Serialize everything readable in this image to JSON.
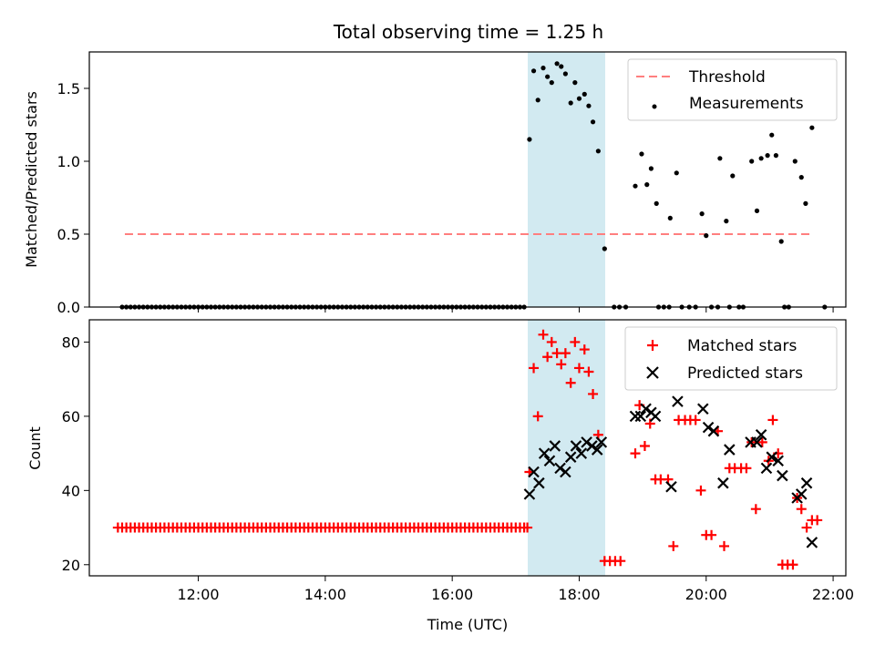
{
  "title": "Total observing time = 1.25 h",
  "colors": {
    "threshold": "#ff7f7f",
    "measurement": "#000000",
    "matched": "#ff0000",
    "predicted": "#000000",
    "window": "#add8e6"
  },
  "chart_data": [
    {
      "type": "scatter",
      "panel": "top",
      "ylabel": "Matched/Predicted stars",
      "xlabel": "",
      "xlim": [
        "10:17",
        "22:12"
      ],
      "ylim": [
        0,
        1.75
      ],
      "yticks": [
        "0.0",
        "0.5",
        "1.0",
        "1.5"
      ],
      "xticks": [
        "12:00",
        "14:00",
        "16:00",
        "18:00",
        "20:00",
        "22:00"
      ],
      "observing_window": [
        "17:13",
        "18:28"
      ],
      "legend_position": "top-right",
      "threshold": {
        "name": "Threshold",
        "y": 0.5,
        "x_range": [
          "10:44",
          "21:54"
        ]
      },
      "series": [
        {
          "name": "Measurements",
          "marker": "dot",
          "points": [
            [
              "17:13",
              1.15
            ],
            [
              "17:17",
              1.62
            ],
            [
              "17:21",
              1.42
            ],
            [
              "17:26",
              1.64
            ],
            [
              "17:30",
              1.58
            ],
            [
              "17:34",
              1.54
            ],
            [
              "17:39",
              1.67
            ],
            [
              "17:43",
              1.65
            ],
            [
              "17:47",
              1.6
            ],
            [
              "17:52",
              1.4
            ],
            [
              "17:56",
              1.54
            ],
            [
              "18:00",
              1.43
            ],
            [
              "18:05",
              1.46
            ],
            [
              "18:09",
              1.38
            ],
            [
              "18:13",
              1.27
            ],
            [
              "18:18",
              1.07
            ],
            [
              "18:24",
              0.4
            ],
            [
              "18:53",
              0.83
            ],
            [
              "18:59",
              1.05
            ],
            [
              "19:04",
              0.84
            ],
            [
              "19:08",
              0.95
            ],
            [
              "19:13",
              0.71
            ],
            [
              "19:26",
              0.61
            ],
            [
              "19:32",
              0.92
            ],
            [
              "19:56",
              0.64
            ],
            [
              "20:00",
              0.49
            ],
            [
              "20:13",
              1.02
            ],
            [
              "20:19",
              0.59
            ],
            [
              "20:25",
              0.9
            ],
            [
              "20:43",
              1.0
            ],
            [
              "20:48",
              0.66
            ],
            [
              "20:52",
              1.02
            ],
            [
              "20:58",
              1.04
            ],
            [
              "21:02",
              1.18
            ],
            [
              "21:06",
              1.04
            ],
            [
              "21:11",
              0.45
            ],
            [
              "21:24",
              1.0
            ],
            [
              "21:30",
              0.89
            ],
            [
              "21:34",
              0.71
            ],
            [
              "21:40",
              1.23
            ]
          ],
          "zero_points": [
            "10:48",
            "10:52",
            "10:56",
            "11:00",
            "11:04",
            "11:08",
            "11:12",
            "11:16",
            "11:20",
            "11:24",
            "11:28",
            "11:32",
            "11:36",
            "11:40",
            "11:44",
            "11:48",
            "11:52",
            "11:56",
            "12:00",
            "12:04",
            "12:08",
            "12:12",
            "12:16",
            "12:20",
            "12:24",
            "12:28",
            "12:32",
            "12:36",
            "12:40",
            "12:44",
            "12:48",
            "12:52",
            "12:56",
            "13:00",
            "13:04",
            "13:08",
            "13:12",
            "13:16",
            "13:20",
            "13:24",
            "13:28",
            "13:32",
            "13:36",
            "13:40",
            "13:44",
            "13:48",
            "13:52",
            "13:56",
            "14:00",
            "14:04",
            "14:08",
            "14:12",
            "14:16",
            "14:20",
            "14:24",
            "14:28",
            "14:32",
            "14:36",
            "14:40",
            "14:44",
            "14:48",
            "14:52",
            "14:56",
            "15:00",
            "15:04",
            "15:08",
            "15:12",
            "15:16",
            "15:20",
            "15:24",
            "15:28",
            "15:32",
            "15:36",
            "15:40",
            "15:44",
            "15:48",
            "15:52",
            "15:56",
            "16:00",
            "16:04",
            "16:08",
            "16:12",
            "16:16",
            "16:20",
            "16:24",
            "16:28",
            "16:32",
            "16:36",
            "16:40",
            "16:44",
            "16:48",
            "16:52",
            "16:56",
            "17:00",
            "17:04",
            "17:08",
            "18:33",
            "18:38",
            "18:44",
            "19:15",
            "19:20",
            "19:25",
            "19:37",
            "19:44",
            "19:50",
            "20:05",
            "20:11",
            "20:22",
            "20:31",
            "20:35",
            "21:14",
            "21:18",
            "21:52"
          ]
        }
      ]
    },
    {
      "type": "scatter",
      "panel": "bottom",
      "ylabel": "Count",
      "xlabel": "Time (UTC)",
      "xlim": [
        "10:17",
        "22:12"
      ],
      "ylim": [
        17,
        86
      ],
      "yticks": [
        "20",
        "40",
        "60",
        "80"
      ],
      "xticks": [
        "12:00",
        "14:00",
        "16:00",
        "18:00",
        "20:00",
        "22:00"
      ],
      "observing_window": [
        "17:13",
        "18:28"
      ],
      "legend_position": "top-right",
      "series": [
        {
          "name": "Matched stars",
          "marker": "plus",
          "points": [
            [
              "17:13",
              45
            ],
            [
              "17:17",
              73
            ],
            [
              "17:21",
              60
            ],
            [
              "17:26",
              82
            ],
            [
              "17:30",
              76
            ],
            [
              "17:34",
              80
            ],
            [
              "17:39",
              77
            ],
            [
              "17:43",
              74
            ],
            [
              "17:47",
              77
            ],
            [
              "17:52",
              69
            ],
            [
              "17:56",
              80
            ],
            [
              "18:00",
              73
            ],
            [
              "18:05",
              78
            ],
            [
              "18:09",
              72
            ],
            [
              "18:13",
              66
            ],
            [
              "18:18",
              55
            ],
            [
              "18:24",
              21
            ],
            [
              "18:29",
              21
            ],
            [
              "18:34",
              21
            ],
            [
              "18:39",
              21
            ],
            [
              "18:53",
              50
            ],
            [
              "18:57",
              63
            ],
            [
              "19:02",
              52
            ],
            [
              "19:07",
              58
            ],
            [
              "19:12",
              43
            ],
            [
              "19:17",
              43
            ],
            [
              "19:24",
              43
            ],
            [
              "19:29",
              25
            ],
            [
              "19:34",
              59
            ],
            [
              "19:40",
              59
            ],
            [
              "19:45",
              59
            ],
            [
              "19:50",
              59
            ],
            [
              "19:55",
              40
            ],
            [
              "20:00",
              28
            ],
            [
              "20:05",
              28
            ],
            [
              "20:11",
              56
            ],
            [
              "20:17",
              25
            ],
            [
              "20:22",
              46
            ],
            [
              "20:27",
              46
            ],
            [
              "20:33",
              46
            ],
            [
              "20:38",
              46
            ],
            [
              "20:43",
              53
            ],
            [
              "20:47",
              35
            ],
            [
              "20:53",
              53
            ],
            [
              "20:59",
              48
            ],
            [
              "21:03",
              59
            ],
            [
              "21:08",
              50
            ],
            [
              "21:12",
              20
            ],
            [
              "21:17",
              20
            ],
            [
              "21:22",
              20
            ],
            [
              "21:26",
              38
            ],
            [
              "21:30",
              35
            ],
            [
              "21:35",
              30
            ],
            [
              "21:40",
              32
            ],
            [
              "21:45",
              32
            ]
          ],
          "flat_series": {
            "y": 30,
            "times": [
              "10:44",
              "10:48",
              "10:52",
              "10:56",
              "11:00",
              "11:04",
              "11:08",
              "11:12",
              "11:16",
              "11:20",
              "11:24",
              "11:28",
              "11:32",
              "11:36",
              "11:40",
              "11:44",
              "11:48",
              "11:52",
              "11:56",
              "12:00",
              "12:04",
              "12:08",
              "12:12",
              "12:16",
              "12:20",
              "12:24",
              "12:28",
              "12:32",
              "12:36",
              "12:40",
              "12:44",
              "12:48",
              "12:52",
              "12:56",
              "13:00",
              "13:04",
              "13:08",
              "13:12",
              "13:16",
              "13:20",
              "13:24",
              "13:28",
              "13:32",
              "13:36",
              "13:40",
              "13:44",
              "13:48",
              "13:52",
              "13:56",
              "14:00",
              "14:04",
              "14:08",
              "14:12",
              "14:16",
              "14:20",
              "14:24",
              "14:28",
              "14:32",
              "14:36",
              "14:40",
              "14:44",
              "14:48",
              "14:52",
              "14:56",
              "15:00",
              "15:04",
              "15:08",
              "15:12",
              "15:16",
              "15:20",
              "15:24",
              "15:28",
              "15:32",
              "15:36",
              "15:40",
              "15:44",
              "15:48",
              "15:52",
              "15:56",
              "16:00",
              "16:04",
              "16:08",
              "16:12",
              "16:16",
              "16:20",
              "16:24",
              "16:28",
              "16:32",
              "16:36",
              "16:40",
              "16:44",
              "16:48",
              "16:52",
              "16:56",
              "17:00",
              "17:04",
              "17:08",
              "17:11"
            ]
          }
        },
        {
          "name": "Predicted stars",
          "marker": "x",
          "points": [
            [
              "17:13",
              39
            ],
            [
              "17:17",
              45
            ],
            [
              "17:22",
              42
            ],
            [
              "17:27",
              50
            ],
            [
              "17:32",
              48
            ],
            [
              "17:37",
              52
            ],
            [
              "17:42",
              46
            ],
            [
              "17:47",
              45
            ],
            [
              "17:52",
              49
            ],
            [
              "17:57",
              52
            ],
            [
              "18:02",
              50
            ],
            [
              "18:07",
              53
            ],
            [
              "18:12",
              52
            ],
            [
              "18:17",
              51
            ],
            [
              "18:21",
              53
            ],
            [
              "18:53",
              60
            ],
            [
              "18:58",
              60
            ],
            [
              "19:03",
              62
            ],
            [
              "19:08",
              61
            ],
            [
              "19:12",
              60
            ],
            [
              "19:27",
              41
            ],
            [
              "19:33",
              64
            ],
            [
              "19:57",
              62
            ],
            [
              "20:02",
              57
            ],
            [
              "20:07",
              56
            ],
            [
              "20:16",
              42
            ],
            [
              "20:22",
              51
            ],
            [
              "20:42",
              53
            ],
            [
              "20:48",
              53
            ],
            [
              "20:52",
              55
            ],
            [
              "20:57",
              46
            ],
            [
              "21:02",
              49
            ],
            [
              "21:08",
              48
            ],
            [
              "21:12",
              44
            ],
            [
              "21:26",
              38
            ],
            [
              "21:30",
              39
            ],
            [
              "21:35",
              42
            ],
            [
              "21:40",
              26
            ]
          ]
        }
      ]
    }
  ]
}
